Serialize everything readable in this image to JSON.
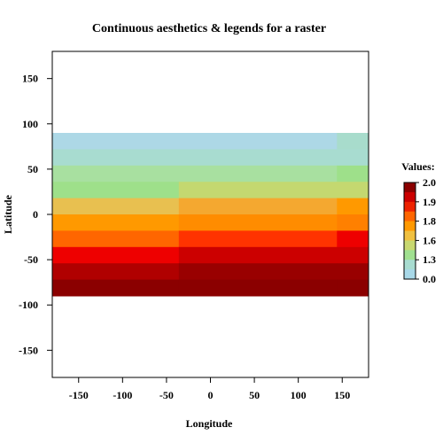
{
  "chart_data": {
    "type": "heatmap",
    "title": "Continuous aesthetics & legends for a raster",
    "xlabel": "Longitude",
    "ylabel": "Latitude",
    "xlim": [
      -180,
      180
    ],
    "ylim": [
      -180,
      180
    ],
    "x_ticks": [
      -150,
      -100,
      -50,
      0,
      50,
      100,
      150
    ],
    "y_ticks": [
      -150,
      -100,
      -50,
      0,
      50,
      100,
      150
    ],
    "grid": false,
    "legend": {
      "title": "Values:",
      "position": "right",
      "ticks": [
        "2.0",
        "1.9",
        "1.8",
        "1.6",
        "1.3",
        "0.0"
      ],
      "colors_top_to_bottom": [
        "#8b0000",
        "#cc0000",
        "#ee2200",
        "#ff6600",
        "#ff9900",
        "#f0c040",
        "#c8d870",
        "#a0e090",
        "#a8dcd0",
        "#a8d8e8"
      ]
    },
    "raster": {
      "x_edges": [
        -180,
        -36,
        144,
        180
      ],
      "rows": [
        {
          "lat": [
            72,
            90
          ],
          "colors": [
            "#add8e6",
            "#add8e6",
            "#a8dccc"
          ]
        },
        {
          "lat": [
            54,
            72
          ],
          "colors": [
            "#a8dcd0",
            "#a8dcd0",
            "#a8dcd0"
          ]
        },
        {
          "lat": [
            36,
            54
          ],
          "colors": [
            "#a8e0a0",
            "#a8e0a0",
            "#9ee08a"
          ]
        },
        {
          "lat": [
            18,
            36
          ],
          "colors": [
            "#9ee08a",
            "#c4d870",
            "#c4d870"
          ]
        },
        {
          "lat": [
            0,
            18
          ],
          "colors": [
            "#e8c050",
            "#f4a830",
            "#ff9900"
          ]
        },
        {
          "lat": [
            -18,
            0
          ],
          "colors": [
            "#ff9900",
            "#ff8c00",
            "#ff8000"
          ]
        },
        {
          "lat": [
            -36,
            -18
          ],
          "colors": [
            "#ff6600",
            "#ff3300",
            "#ee0000"
          ]
        },
        {
          "lat": [
            -54,
            -36
          ],
          "colors": [
            "#ee0000",
            "#cc0000",
            "#cc0000"
          ]
        },
        {
          "lat": [
            -72,
            -54
          ],
          "colors": [
            "#b00000",
            "#990000",
            "#990000"
          ]
        },
        {
          "lat": [
            -90,
            -72
          ],
          "colors": [
            "#8b0000",
            "#8b0000",
            "#8b0000"
          ]
        }
      ]
    }
  }
}
